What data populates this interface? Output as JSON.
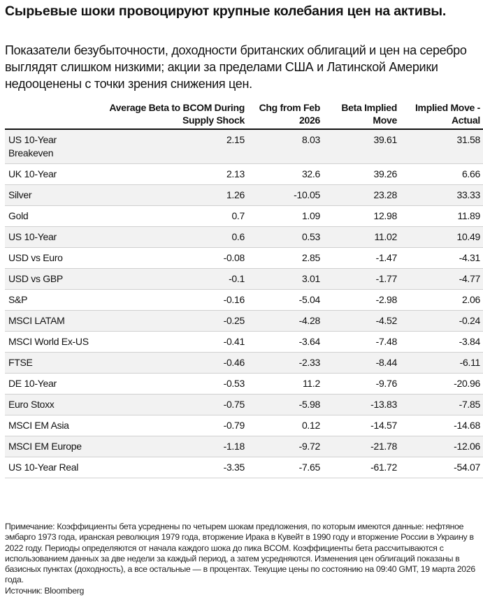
{
  "title": "Сырьевые шоки провоцируют крупные колебания цен на активы.",
  "subtitle": "Показатели безубыточности, доходности британских облигаций и цен на серебро выглядят слишком низкими; акции за пределами США и Латинской Америки недооценены с точки зрения снижения цен.",
  "table": {
    "headers": [
      "",
      "Average Beta to BCOM During Supply Shock",
      "Chg from Feb 2026",
      "Beta Implied Move",
      "Implied Move - Actual"
    ],
    "rows": [
      [
        "US 10-Year Breakeven",
        "2.15",
        "8.03",
        "39.61",
        "31.58"
      ],
      [
        "UK 10-Year",
        "2.13",
        "32.6",
        "39.26",
        "6.66"
      ],
      [
        "Silver",
        "1.26",
        "-10.05",
        "23.28",
        "33.33"
      ],
      [
        "Gold",
        "0.7",
        "1.09",
        "12.98",
        "11.89"
      ],
      [
        "US 10-Year",
        "0.6",
        "0.53",
        "11.02",
        "10.49"
      ],
      [
        "USD vs Euro",
        "-0.08",
        "2.85",
        "-1.47",
        "-4.31"
      ],
      [
        "USD vs GBP",
        "-0.1",
        "3.01",
        "-1.77",
        "-4.77"
      ],
      [
        "S&P",
        "-0.16",
        "-5.04",
        "-2.98",
        "2.06"
      ],
      [
        "MSCI LATAM",
        "-0.25",
        "-4.28",
        "-4.52",
        "-0.24"
      ],
      [
        "MSCI World Ex-US",
        "-0.41",
        "-3.64",
        "-7.48",
        "-3.84"
      ],
      [
        "FTSE",
        "-0.46",
        "-2.33",
        "-8.44",
        "-6.11"
      ],
      [
        "DE 10-Year",
        "-0.53",
        "11.2",
        "-9.76",
        "-20.96"
      ],
      [
        "Euro Stoxx",
        "-0.75",
        "-5.98",
        "-13.83",
        "-7.85"
      ],
      [
        "MSCI EM Asia",
        "-0.79",
        "0.12",
        "-14.57",
        "-14.68"
      ],
      [
        "MSCI EM Europe",
        "-1.18",
        "-9.72",
        "-21.78",
        "-12.06"
      ],
      [
        "US 10-Year Real",
        "-3.35",
        "-7.65",
        "-61.72",
        "-54.07"
      ]
    ]
  },
  "note": "Примечание: Коэффициенты бета усреднены по четырем шокам предложения, по которым имеются данные: нефтяное эмбарго 1973 года, иранская революция 1979 года, вторжение Ирака в Кувейт в 1990 году и вторжение России в Украину в 2022 году. Периоды определяются от начала каждого шока до пика BCOM. Коэффициенты бета рассчитываются с использованием данных за две недели за каждый период, а затем усредняются. Изменения цен облигаций показаны в базисных пунктах (доходность), а все остальные — в процентах. Текущие цены по состоянию на 09:40 GMT, 19 марта 2026 года.",
  "source": "Источник: Bloomberg",
  "colors": {
    "stripe": "#f2f2f2",
    "rule": "#111111"
  }
}
